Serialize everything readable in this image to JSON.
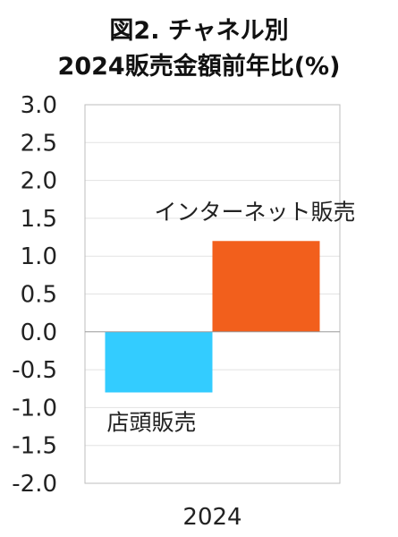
{
  "chart_data": {
    "type": "bar",
    "title_lines": [
      "図2. チャネル別",
      "2024販売金額前年比(%)"
    ],
    "categories": [
      "2024"
    ],
    "series": [
      {
        "name": "店頭販売",
        "values": [
          -0.8
        ],
        "color": "#33CCFF"
      },
      {
        "name": "インターネット販売",
        "values": [
          1.2
        ],
        "color": "#F25F1C"
      }
    ],
    "ylim": [
      -2.0,
      3.0
    ],
    "yticks": [
      "3.0",
      "2.5",
      "2.0",
      "1.5",
      "1.0",
      "0.5",
      "0.0",
      "-0.5",
      "-1.0",
      "-1.5",
      "-2.0"
    ],
    "grid": true,
    "legend": "inline labels"
  }
}
